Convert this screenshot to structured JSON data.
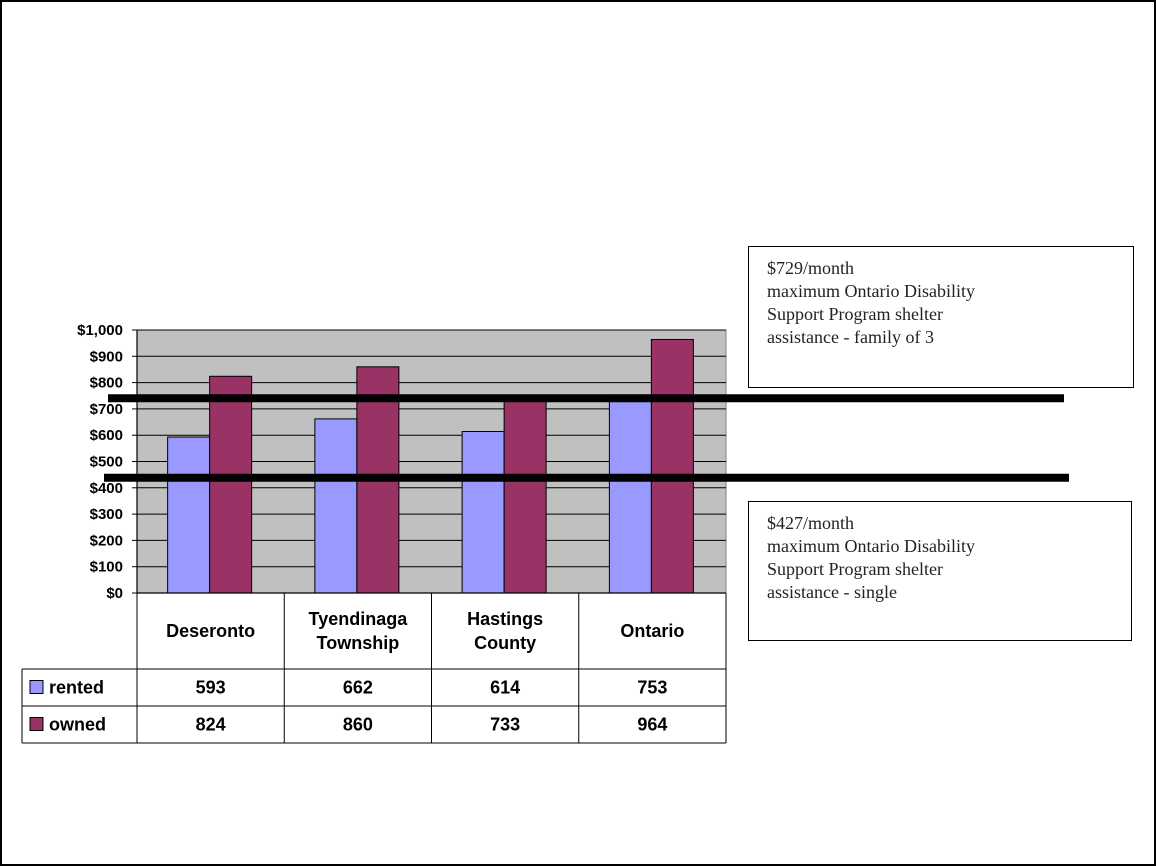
{
  "chart_data": {
    "type": "bar",
    "categories": [
      [
        "Deseronto"
      ],
      [
        "Tyendinaga",
        "Township"
      ],
      [
        "Hastings",
        "County"
      ],
      [
        "Ontario"
      ]
    ],
    "series": [
      {
        "name": "rented",
        "color": "#9999ff",
        "values": [
          593,
          662,
          614,
          753
        ]
      },
      {
        "name": "owned",
        "color": "#993366",
        "values": [
          824,
          860,
          733,
          964
        ]
      }
    ],
    "ylim": [
      0,
      1000
    ],
    "yticks": [
      "$0",
      "$100",
      "$200",
      "$300",
      "$400",
      "$500",
      "$600",
      "$700",
      "$800",
      "$900",
      "$1,000"
    ],
    "table_values": [
      [
        "593",
        "662",
        "614",
        "753"
      ],
      [
        "824",
        "860",
        "733",
        "964"
      ]
    ],
    "plot_background": "#c0c0c0",
    "grid": true,
    "reference_lines": [
      {
        "value": 729,
        "lines": [
          "$729/month",
          "maximum Ontario Disability",
          "Support Program shelter",
          "assistance - family of 3"
        ]
      },
      {
        "value": 427,
        "lines": [
          "$427/month",
          "maximum Ontario Disability",
          "Support Program shelter",
          "assistance - single"
        ]
      }
    ]
  }
}
